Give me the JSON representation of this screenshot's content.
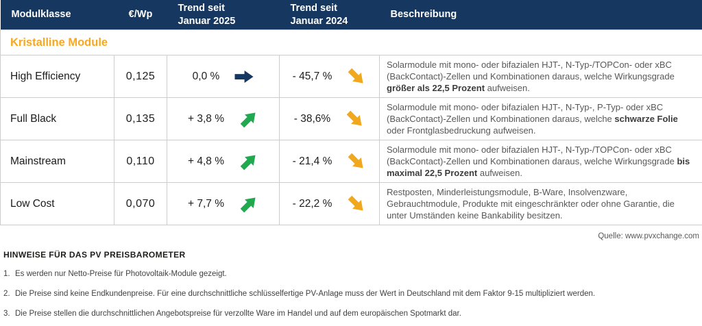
{
  "colors": {
    "header_bg": "#16375f",
    "section_text": "#f7a823",
    "trend_flat": "#16375f",
    "trend_up": "#21a94f",
    "trend_down": "#f2a81d",
    "border": "#cccccc",
    "desc_text": "#58585a"
  },
  "table": {
    "headers": [
      "Modulklasse",
      "€/Wp",
      "Trend seit\nJanuar 2025",
      "Trend seit\nJanuar 2024",
      "Beschreibung"
    ],
    "section_label": "Kristalline Module",
    "rows": [
      {
        "name": "High Efficiency",
        "price": "0,125",
        "trend_2025": {
          "value": "0,0 %",
          "direction": "flat"
        },
        "trend_2024": {
          "value": "- 45,7 %",
          "direction": "down"
        },
        "description": [
          {
            "t": "Solarmodule mit mono- oder bifazialen HJT-, N-Typ-/TOPCon- oder xBC (BackContact)-Zellen und Kombinationen daraus, welche Wirkungsgrade ",
            "b": false
          },
          {
            "t": "größer als 22,5 Prozent",
            "b": true
          },
          {
            "t": " aufweisen.",
            "b": false
          }
        ]
      },
      {
        "name": "Full Black",
        "price": "0,135",
        "trend_2025": {
          "value": "+ 3,8 %",
          "direction": "up"
        },
        "trend_2024": {
          "value": "- 38,6%",
          "direction": "down"
        },
        "description": [
          {
            "t": "Solarmodule mit mono- oder bifazialen HJT-, N-Typ-, P-Typ- oder xBC (BackContact)-Zellen und Kombinationen daraus, welche ",
            "b": false
          },
          {
            "t": "schwarze Folie",
            "b": true
          },
          {
            "t": " oder Frontglasbedruckung aufweisen.",
            "b": false
          }
        ]
      },
      {
        "name": "Mainstream",
        "price": "0,110",
        "trend_2025": {
          "value": "+ 4,8 %",
          "direction": "up"
        },
        "trend_2024": {
          "value": "- 21,4 %",
          "direction": "down"
        },
        "description": [
          {
            "t": "Solarmodule mit mono- oder bifazialen HJT-, N-Typ-/TOPCon- oder xBC (BackContact)-Zellen und Kombinationen daraus, welche Wirkungsgrade ",
            "b": false
          },
          {
            "t": "bis maximal 22,5 Prozent",
            "b": true
          },
          {
            "t": " aufweisen.",
            "b": false
          }
        ]
      },
      {
        "name": "Low Cost",
        "price": "0,070",
        "trend_2025": {
          "value": "+ 7,7 %",
          "direction": "up"
        },
        "trend_2024": {
          "value": "- 22,2 %",
          "direction": "down"
        },
        "description": [
          {
            "t": "Restposten, Minderleistungsmodule, B-Ware, Insolvenzware, Gebrauchtmodule, Produkte mit eingeschränkter oder ohne Garantie, die unter Umständen keine Bankability besitzen.",
            "b": false
          }
        ]
      }
    ]
  },
  "source": "Quelle: www.pvxchange.com",
  "notes": {
    "title": "HINWEISE FÜR DAS PV PREISBAROMETER",
    "items": [
      {
        "num": "1.",
        "text": "Es werden nur Netto-Preise für Photovoltaik-Module gezeigt."
      },
      {
        "num": "2.",
        "text": "Die Preise sind keine Endkundenpreise. Für eine durchschnittliche schlüsselfertige PV-Anlage muss der Wert in Deutschland mit dem Faktor 9-15 multipliziert werden."
      },
      {
        "num": "3.",
        "text": "Die Preise stellen die durchschnittlichen Angebotspreise für verzollte Ware im Handel und auf dem europäischen Spotmarkt dar."
      }
    ]
  },
  "chart_data": {
    "type": "table",
    "title": "PV Preisbarometer – Kristalline Module",
    "columns": [
      "Modulklasse",
      "€/Wp",
      "Trend seit Januar 2025 (%)",
      "Trend seit Januar 2024 (%)"
    ],
    "rows": [
      [
        "High Efficiency",
        0.125,
        0.0,
        -45.7
      ],
      [
        "Full Black",
        0.135,
        3.8,
        -38.6
      ],
      [
        "Mainstream",
        0.11,
        4.8,
        -21.4
      ],
      [
        "Low Cost",
        0.07,
        7.7,
        -22.2
      ]
    ],
    "source": "www.pvxchange.com"
  }
}
